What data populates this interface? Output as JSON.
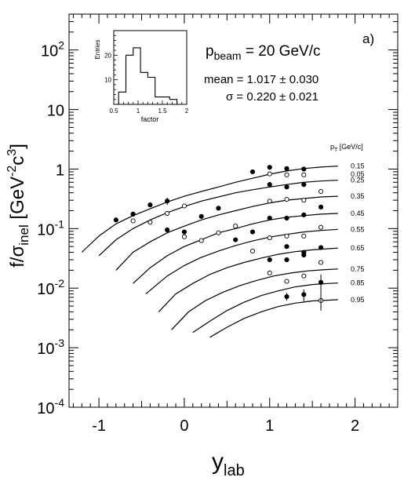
{
  "chart_data": {
    "type": "scatter",
    "panel_label": "a)",
    "xlabel_main": "y",
    "xlabel_sub": "lab",
    "ylabel": "f/σ_inel [GeV^-2c^3]",
    "ylabel_parts": [
      "f/σ",
      "inel",
      " [GeV",
      "-2",
      "c",
      "3",
      "]"
    ],
    "xlim": [
      -1.35,
      2.5
    ],
    "ylim": [
      0.0001,
      400
    ],
    "y_scale": "log",
    "x_ticks": [
      {
        "v": -1,
        "label": "-1"
      },
      {
        "v": 0,
        "label": "0"
      },
      {
        "v": 1,
        "label": "1"
      },
      {
        "v": 2,
        "label": "2"
      }
    ],
    "y_ticks": [
      {
        "v": 100,
        "base": "10",
        "exp": "2"
      },
      {
        "v": 10,
        "base": "10",
        "exp": ""
      },
      {
        "v": 1,
        "base": "1",
        "exp": ""
      },
      {
        "v": 0.1,
        "base": "10",
        "exp": "-1"
      },
      {
        "v": 0.01,
        "base": "10",
        "exp": "-2"
      },
      {
        "v": 0.001,
        "base": "10",
        "exp": "-3"
      },
      {
        "v": 0.0001,
        "base": "10",
        "exp": "-4"
      }
    ],
    "annotations": {
      "pbeam_main": "p",
      "pbeam_sub": "beam",
      "pbeam_value": " =  20 GeV/c",
      "mean": "mean = 1.017 ± 0.030",
      "sigma": "σ = 0.220 ± 0.021",
      "pt_header": "p",
      "pt_header_sub": "T",
      "pt_header_unit": " [GeV/c]"
    },
    "pt_labels": [
      "0.05",
      "0.15",
      "0.25",
      "0.35",
      "0.45",
      "0.55",
      "0.65",
      "0.75",
      "0.85",
      "0.95"
    ],
    "curves": [
      {
        "pt": "0.15",
        "x": [
          -1.2,
          -1.0,
          -0.8,
          -0.6,
          -0.4,
          -0.2,
          0.0,
          0.2,
          0.4,
          0.6,
          0.8,
          1.0,
          1.2,
          1.4,
          1.6,
          1.8
        ],
        "y": [
          0.04,
          0.075,
          0.12,
          0.165,
          0.215,
          0.28,
          0.35,
          0.42,
          0.5,
          0.6,
          0.7,
          0.82,
          0.93,
          1.02,
          1.08,
          1.12
        ]
      },
      {
        "pt": "0.25",
        "x": [
          -1.0,
          -0.8,
          -0.6,
          -0.4,
          -0.2,
          0.0,
          0.2,
          0.4,
          0.6,
          0.8,
          1.0,
          1.2,
          1.4,
          1.6,
          1.8
        ],
        "y": [
          0.035,
          0.065,
          0.1,
          0.14,
          0.185,
          0.235,
          0.29,
          0.34,
          0.4,
          0.45,
          0.5,
          0.55,
          0.6,
          0.63,
          0.65
        ]
      },
      {
        "pt": "0.35",
        "x": [
          -0.8,
          -0.6,
          -0.4,
          -0.2,
          0.0,
          0.2,
          0.4,
          0.6,
          0.8,
          1.0,
          1.2,
          1.4,
          1.6,
          1.8
        ],
        "y": [
          0.02,
          0.04,
          0.06,
          0.085,
          0.11,
          0.14,
          0.17,
          0.2,
          0.235,
          0.27,
          0.3,
          0.32,
          0.34,
          0.35
        ]
      },
      {
        "pt": "0.45",
        "x": [
          -0.6,
          -0.4,
          -0.2,
          0.0,
          0.2,
          0.4,
          0.6,
          0.8,
          1.0,
          1.2,
          1.4,
          1.6,
          1.8
        ],
        "y": [
          0.012,
          0.022,
          0.035,
          0.05,
          0.065,
          0.085,
          0.1,
          0.12,
          0.14,
          0.155,
          0.165,
          0.175,
          0.18
        ]
      },
      {
        "pt": "0.55",
        "x": [
          -0.45,
          -0.2,
          0.0,
          0.2,
          0.4,
          0.6,
          0.8,
          1.0,
          1.2,
          1.4,
          1.6,
          1.8
        ],
        "y": [
          0.008,
          0.016,
          0.024,
          0.033,
          0.042,
          0.052,
          0.062,
          0.072,
          0.08,
          0.088,
          0.093,
          0.097
        ]
      },
      {
        "pt": "0.65",
        "x": [
          -0.3,
          -0.1,
          0.1,
          0.3,
          0.5,
          0.7,
          0.9,
          1.1,
          1.3,
          1.5,
          1.7,
          1.8
        ],
        "y": [
          0.004,
          0.008,
          0.012,
          0.017,
          0.022,
          0.027,
          0.032,
          0.037,
          0.041,
          0.044,
          0.046,
          0.047
        ]
      },
      {
        "pt": "0.75",
        "x": [
          -0.15,
          0.05,
          0.25,
          0.45,
          0.65,
          0.85,
          1.05,
          1.25,
          1.45,
          1.65,
          1.8
        ],
        "y": [
          0.002,
          0.004,
          0.0062,
          0.0085,
          0.011,
          0.0135,
          0.016,
          0.018,
          0.0195,
          0.0205,
          0.021
        ]
      },
      {
        "pt": "0.85",
        "x": [
          0.1,
          0.3,
          0.5,
          0.7,
          0.9,
          1.1,
          1.3,
          1.5,
          1.7,
          1.8
        ],
        "y": [
          0.0018,
          0.0028,
          0.0042,
          0.0058,
          0.0075,
          0.009,
          0.0105,
          0.0115,
          0.012,
          0.0122
        ]
      },
      {
        "pt": "0.95",
        "x": [
          0.3,
          0.5,
          0.7,
          0.9,
          1.1,
          1.3,
          1.5,
          1.7,
          1.8
        ],
        "y": [
          0.0015,
          0.0022,
          0.0031,
          0.004,
          0.0049,
          0.0056,
          0.0061,
          0.0063,
          0.0064
        ]
      }
    ],
    "points_filled": [
      {
        "x": -0.8,
        "y": 0.14
      },
      {
        "x": -0.6,
        "y": 0.175
      },
      {
        "x": -0.4,
        "y": 0.25
      },
      {
        "x": -0.2,
        "y": 0.29
      },
      {
        "x": -0.2,
        "y": 0.095
      },
      {
        "x": 0.0,
        "y": 0.088
      },
      {
        "x": 0.2,
        "y": 0.16
      },
      {
        "x": 0.4,
        "y": 0.22
      },
      {
        "x": 0.6,
        "y": 0.065
      },
      {
        "x": 0.8,
        "y": 0.9
      },
      {
        "x": 0.8,
        "y": 0.088
      },
      {
        "x": 1.0,
        "y": 1.07
      },
      {
        "x": 1.0,
        "y": 0.55
      },
      {
        "x": 1.0,
        "y": 0.15
      },
      {
        "x": 1.0,
        "y": 0.03
      },
      {
        "x": 1.2,
        "y": 1.02
      },
      {
        "x": 1.2,
        "y": 0.5
      },
      {
        "x": 1.2,
        "y": 0.15
      },
      {
        "x": 1.2,
        "y": 0.05
      },
      {
        "x": 1.2,
        "y": 0.03
      },
      {
        "x": 1.4,
        "y": 1.0
      },
      {
        "x": 1.4,
        "y": 0.55
      },
      {
        "x": 1.4,
        "y": 0.17
      },
      {
        "x": 1.4,
        "y": 0.04
      },
      {
        "x": 1.4,
        "y": 0.036
      },
      {
        "x": 1.2,
        "y": 0.0072
      },
      {
        "x": 1.6,
        "y": 0.23
      },
      {
        "x": 1.6,
        "y": 0.048
      },
      {
        "x": 1.6,
        "y": 0.0125
      },
      {
        "x": 1.4,
        "y": 0.0078
      }
    ],
    "points_open": [
      {
        "x": -0.6,
        "y": 0.135
      },
      {
        "x": -0.4,
        "y": 0.128
      },
      {
        "x": -0.2,
        "y": 0.18
      },
      {
        "x": 0.0,
        "y": 0.24
      },
      {
        "x": 0.0,
        "y": 0.073
      },
      {
        "x": 0.2,
        "y": 0.063
      },
      {
        "x": 0.4,
        "y": 0.085
      },
      {
        "x": 0.6,
        "y": 0.11
      },
      {
        "x": 0.8,
        "y": 0.042
      },
      {
        "x": 1.0,
        "y": 0.83
      },
      {
        "x": 1.0,
        "y": 0.29
      },
      {
        "x": 1.0,
        "y": 0.07
      },
      {
        "x": 1.0,
        "y": 0.018
      },
      {
        "x": 1.2,
        "y": 0.8
      },
      {
        "x": 1.2,
        "y": 0.31
      },
      {
        "x": 1.2,
        "y": 0.075
      },
      {
        "x": 1.2,
        "y": 0.013
      },
      {
        "x": 1.4,
        "y": 0.8
      },
      {
        "x": 1.4,
        "y": 0.3
      },
      {
        "x": 1.4,
        "y": 0.075
      },
      {
        "x": 1.4,
        "y": 0.016
      },
      {
        "x": 1.6,
        "y": 0.42
      },
      {
        "x": 1.6,
        "y": 0.105
      },
      {
        "x": 1.6,
        "y": 0.027
      },
      {
        "x": 1.6,
        "y": 0.0062
      }
    ],
    "inset": {
      "type": "histogram",
      "xlabel": "factor",
      "ylabel": "Entries",
      "xlim": [
        0.5,
        2.0
      ],
      "ylim": [
        0,
        30
      ],
      "x_ticks": [
        {
          "v": 0.5,
          "label": "0.5"
        },
        {
          "v": 1.0,
          "label": "1"
        },
        {
          "v": 1.5,
          "label": "1.5"
        },
        {
          "v": 2.0,
          "label": "2"
        }
      ],
      "y_ticks": [
        {
          "v": 10,
          "label": "10"
        },
        {
          "v": 20,
          "label": "20"
        }
      ],
      "bin_edges": [
        0.6,
        0.75,
        0.9,
        1.05,
        1.2,
        1.35,
        1.5,
        1.65,
        1.8,
        1.95
      ],
      "counts": [
        5,
        20,
        23,
        13,
        11,
        3,
        3,
        2,
        0
      ]
    }
  }
}
